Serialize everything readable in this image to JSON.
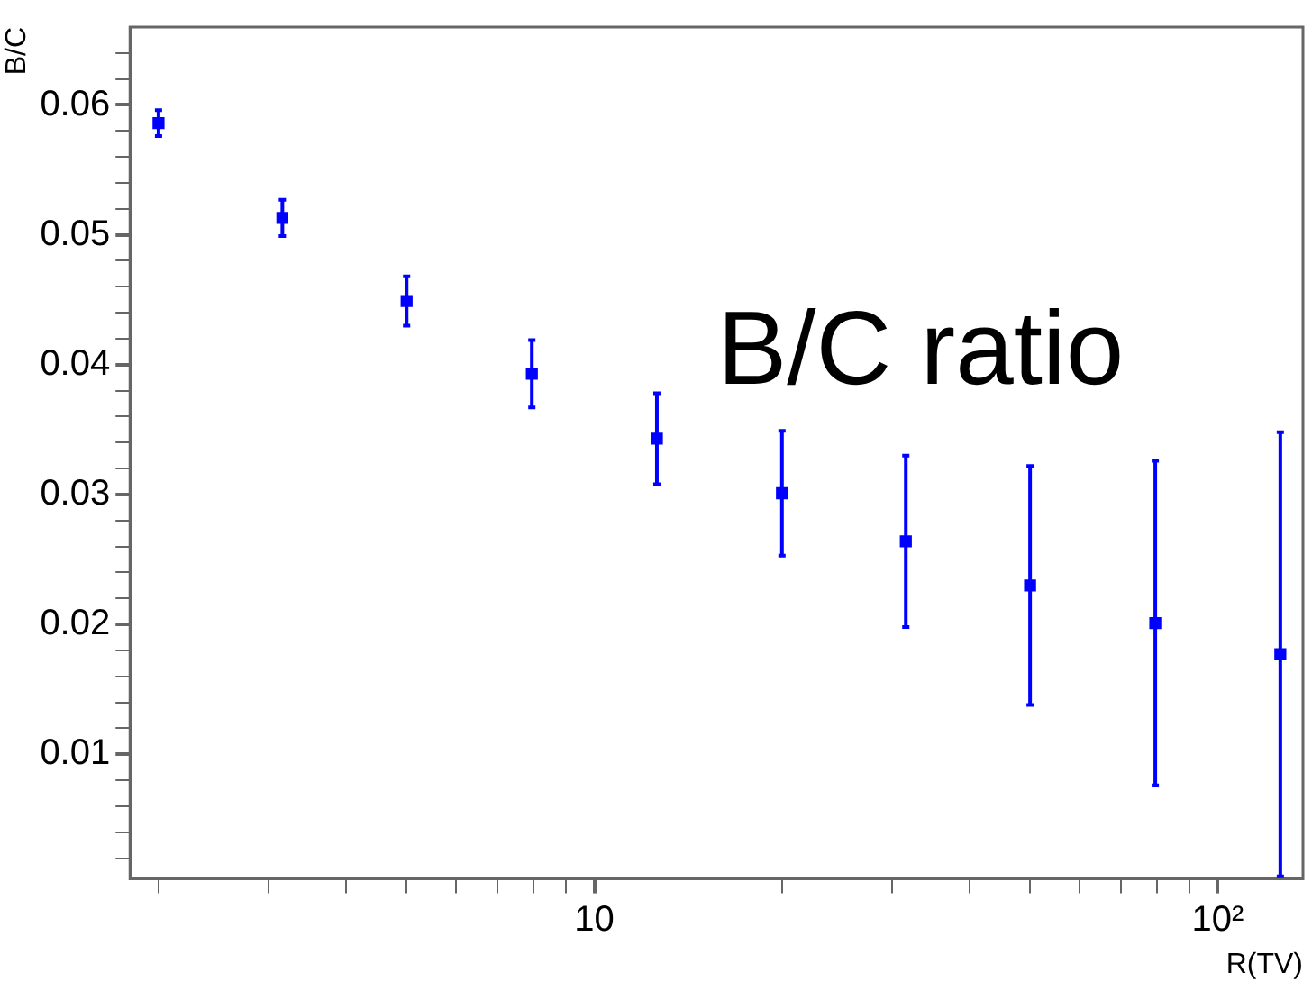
{
  "chart_data": {
    "type": "scatter",
    "xlabel": "R(TV)",
    "ylabel": "B/C",
    "annotations": [
      "B/C ratio"
    ],
    "log": "x",
    "marker": "square",
    "grid": false,
    "legend": false,
    "xlim": [
      1.8,
      137
    ],
    "ylim": [
      0.0004,
      0.066
    ],
    "xticks": [
      {
        "value": 2,
        "label": null
      },
      {
        "value": 3,
        "label": null
      },
      {
        "value": 4,
        "label": null
      },
      {
        "value": 5,
        "label": null
      },
      {
        "value": 6,
        "label": null
      },
      {
        "value": 7,
        "label": null
      },
      {
        "value": 8,
        "label": null
      },
      {
        "value": 9,
        "label": null
      },
      10,
      {
        "value": 20,
        "label": null
      },
      {
        "value": 30,
        "label": null
      },
      {
        "value": 40,
        "label": null
      },
      {
        "value": 50,
        "label": null
      },
      {
        "value": 60,
        "label": null
      },
      {
        "value": 70,
        "label": null
      },
      {
        "value": 80,
        "label": null
      },
      {
        "value": 90,
        "label": null
      },
      {
        "value": 100,
        "label": "10²"
      }
    ],
    "yticks": [
      {
        "value": 0.002,
        "label": null
      },
      {
        "value": 0.004,
        "label": null
      },
      {
        "value": 0.006,
        "label": null
      },
      {
        "value": 0.008,
        "label": null
      },
      0.01,
      {
        "value": 0.012,
        "label": null
      },
      {
        "value": 0.014,
        "label": null
      },
      {
        "value": 0.016,
        "label": null
      },
      {
        "value": 0.018,
        "label": null
      },
      0.02,
      {
        "value": 0.022,
        "label": null
      },
      {
        "value": 0.024,
        "label": null
      },
      {
        "value": 0.026,
        "label": null
      },
      {
        "value": 0.028,
        "label": null
      },
      0.03,
      {
        "value": 0.032,
        "label": null
      },
      {
        "value": 0.034,
        "label": null
      },
      {
        "value": 0.036,
        "label": null
      },
      {
        "value": 0.038,
        "label": null
      },
      0.04,
      {
        "value": 0.042,
        "label": null
      },
      {
        "value": 0.044,
        "label": null
      },
      {
        "value": 0.046,
        "label": null
      },
      {
        "value": 0.048,
        "label": null
      },
      0.05,
      {
        "value": 0.052,
        "label": null
      },
      {
        "value": 0.054,
        "label": null
      },
      {
        "value": 0.056,
        "label": null
      },
      {
        "value": 0.058,
        "label": null
      },
      0.06,
      {
        "value": 0.062,
        "label": null
      },
      {
        "value": 0.064,
        "label": null
      }
    ],
    "series": [
      {
        "color": "#0000ff",
        "x": [
          2,
          3.16,
          5,
          7.94,
          12.6,
          20,
          31.6,
          50,
          79.4,
          126
        ],
        "values": [
          0.0586,
          0.0513,
          0.0449,
          0.0393,
          0.0343,
          0.0301,
          0.0264,
          0.023,
          0.0201,
          0.0177
        ],
        "errors": [
          0.001,
          0.0014,
          0.0019,
          0.0026,
          0.0035,
          0.0048,
          0.0066,
          0.0092,
          0.0125,
          0.0171
        ]
      }
    ]
  }
}
